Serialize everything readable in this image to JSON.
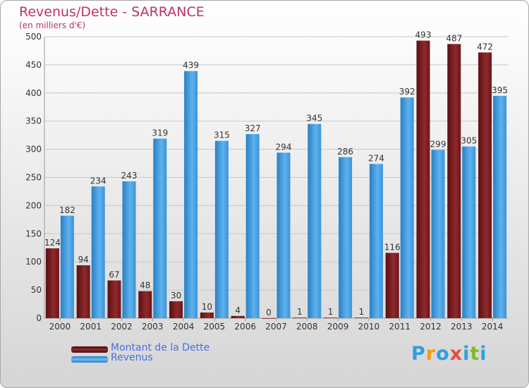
{
  "title": "Revenus/Dette - SARRANCE",
  "subtitle": "(en milliers d'€)",
  "colors": {
    "title": "#c0306a",
    "debt": "#7b1e22",
    "revenue": "#3d96db",
    "legend_text": "#4a6ee0"
  },
  "logo": {
    "letters": [
      "P",
      "r",
      "o",
      "x",
      "i",
      "t",
      "i"
    ],
    "colors": [
      "#2f9fe0",
      "#f39c12",
      "#2f9fe0",
      "#e74c3c",
      "#2f9fe0",
      "#7dbb2a",
      "#2f9fe0"
    ]
  },
  "chart_data": {
    "type": "bar",
    "categories": [
      "2000",
      "2001",
      "2002",
      "2003",
      "2004",
      "2005",
      "2006",
      "2007",
      "2008",
      "2009",
      "2010",
      "2011",
      "2012",
      "2013",
      "2014"
    ],
    "series": [
      {
        "name": "Montant de la Dette",
        "values": [
          124,
          94,
          67,
          48,
          30,
          10,
          4,
          0,
          1,
          1,
          1,
          116,
          493,
          487,
          472
        ]
      },
      {
        "name": "Revenus",
        "values": [
          182,
          234,
          243,
          319,
          439,
          315,
          327,
          294,
          345,
          286,
          274,
          392,
          299,
          305,
          395
        ]
      }
    ],
    "y_ticks": [
      0,
      50,
      100,
      150,
      200,
      250,
      300,
      350,
      400,
      450,
      500
    ],
    "ylim": [
      0,
      500
    ],
    "grid": true,
    "legend_position": "bottom-left"
  }
}
